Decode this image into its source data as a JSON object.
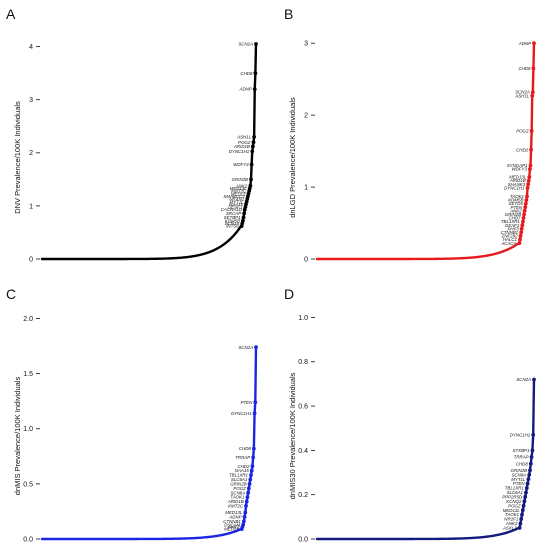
{
  "figure": {
    "panels": [
      "A",
      "B",
      "C",
      "D"
    ]
  },
  "chart_data": [
    {
      "panel": "A",
      "type": "scatter",
      "title": "",
      "xlabel": "",
      "ylabel": "DNV Prevalence/100K Individuals",
      "ylim": [
        0,
        4.2
      ],
      "yticks": [
        0,
        1,
        2,
        3,
        4
      ],
      "color": "#000000",
      "n_genes": 19000,
      "grid": false,
      "labeled_genes": [
        {
          "gene": "SCN2A",
          "value": 4.05
        },
        {
          "gene": "CHD8",
          "value": 3.5
        },
        {
          "gene": "ADNP",
          "value": 3.2
        },
        {
          "gene": "ASH1L",
          "value": 2.3
        },
        {
          "gene": "POGZ",
          "value": 2.2
        },
        {
          "gene": "ARID1B",
          "value": 2.12
        },
        {
          "gene": "DYNC1H1",
          "value": 2.03
        },
        {
          "gene": "WDFY3",
          "value": 1.78
        },
        {
          "gene": "GRIN2B",
          "value": 1.5
        },
        {
          "gene": "ANK2",
          "value": 1.38
        },
        {
          "gene": "MED13L",
          "value": 1.33
        },
        {
          "gene": "KMT2C",
          "value": 1.28
        },
        {
          "gene": "MED13",
          "value": 1.23
        },
        {
          "gene": "SMARCC2",
          "value": 1.18
        },
        {
          "gene": "NRXN1",
          "value": 1.13
        },
        {
          "gene": "MYT1L",
          "value": 1.08
        },
        {
          "gene": "NAA15",
          "value": 1.03
        },
        {
          "gene": "DEAF1",
          "value": 0.98
        },
        {
          "gene": "CACNA1D",
          "value": 0.93
        },
        {
          "gene": "SRCAP",
          "value": 0.86
        },
        {
          "gene": "SETBP1",
          "value": 0.78
        },
        {
          "gene": "KDM5B",
          "value": 0.72
        },
        {
          "gene": "SCN1A",
          "value": 0.67
        },
        {
          "gene": "INTS6",
          "value": 0.62
        }
      ]
    },
    {
      "panel": "B",
      "type": "scatter",
      "title": "",
      "xlabel": "",
      "ylabel": "dnLGD Prevalence/100K Individuals",
      "ylim": [
        0,
        3.1
      ],
      "yticks": [
        0,
        1,
        2,
        3
      ],
      "color": "#e8191b",
      "n_genes": 19000,
      "grid": false,
      "labeled_genes": [
        {
          "gene": "ADNP",
          "value": 3.0
        },
        {
          "gene": "CHD8",
          "value": 2.65
        },
        {
          "gene": "SCN2A",
          "value": 2.32
        },
        {
          "gene": "ASH1L",
          "value": 2.27
        },
        {
          "gene": "POGZ",
          "value": 1.78
        },
        {
          "gene": "CHD2",
          "value": 1.52
        },
        {
          "gene": "SYNGAP1",
          "value": 1.3
        },
        {
          "gene": "WDFY3",
          "value": 1.25
        },
        {
          "gene": "MED13L",
          "value": 1.14
        },
        {
          "gene": "ARID1B",
          "value": 1.09
        },
        {
          "gene": "SHANK3",
          "value": 1.04
        },
        {
          "gene": "DYNC1H1",
          "value": 0.99
        },
        {
          "gene": "TAOK1",
          "value": 0.87
        },
        {
          "gene": "KDM5B",
          "value": 0.82
        },
        {
          "gene": "SETD5",
          "value": 0.77
        },
        {
          "gene": "PTEN",
          "value": 0.72
        },
        {
          "gene": "ANK2",
          "value": 0.67
        },
        {
          "gene": "GRIN2B",
          "value": 0.62
        },
        {
          "gene": "CHD7",
          "value": 0.57
        },
        {
          "gene": "TBL1XR1",
          "value": 0.52
        },
        {
          "gene": "DEAF1",
          "value": 0.47
        },
        {
          "gene": "PHF3",
          "value": 0.42
        },
        {
          "gene": "CTNNB1",
          "value": 0.37
        },
        {
          "gene": "ZNF292",
          "value": 0.32
        },
        {
          "gene": "HALC1",
          "value": 0.27
        },
        {
          "gene": "ACACA",
          "value": 0.22
        }
      ]
    },
    {
      "panel": "C",
      "type": "scatter",
      "title": "",
      "xlabel": "",
      "ylabel": "dnMIS Prevalence/100K Individuals",
      "ylim": [
        0,
        2.05
      ],
      "yticks": [
        0.0,
        0.5,
        1.0,
        1.5,
        2.0
      ],
      "color": "#1c24e6",
      "n_genes": 19000,
      "grid": false,
      "labeled_genes": [
        {
          "gene": "SCN2A",
          "value": 1.74
        },
        {
          "gene": "PTEN",
          "value": 1.24
        },
        {
          "gene": "DYNC1H1",
          "value": 1.14
        },
        {
          "gene": "CHD8",
          "value": 0.82
        },
        {
          "gene": "TRRAP",
          "value": 0.74
        },
        {
          "gene": "CHD2",
          "value": 0.66
        },
        {
          "gene": "NAA15",
          "value": 0.62
        },
        {
          "gene": "TBL1XR1",
          "value": 0.58
        },
        {
          "gene": "SLC6A1",
          "value": 0.54
        },
        {
          "gene": "GRIN2B",
          "value": 0.5
        },
        {
          "gene": "POGZ",
          "value": 0.46
        },
        {
          "gene": "SCN8A",
          "value": 0.42
        },
        {
          "gene": "TAOK1",
          "value": 0.38
        },
        {
          "gene": "ARID1B",
          "value": 0.34
        },
        {
          "gene": "KMT2C",
          "value": 0.3
        },
        {
          "gene": "MED13L",
          "value": 0.24
        },
        {
          "gene": "ADNP",
          "value": 0.2
        },
        {
          "gene": "CTNNB1",
          "value": 0.16
        },
        {
          "gene": "DSCAM",
          "value": 0.13
        },
        {
          "gene": "ANK2",
          "value": 0.11
        },
        {
          "gene": "MED13",
          "value": 0.09
        }
      ]
    },
    {
      "panel": "D",
      "type": "scatter",
      "title": "",
      "xlabel": "",
      "ylabel": "dnMIS30 Prevalence/100K Individuals",
      "ylim": [
        0,
        1.02
      ],
      "yticks": [
        0.0,
        0.2,
        0.4,
        0.6,
        0.8,
        1.0
      ],
      "color": "#141a80",
      "n_genes": 19000,
      "grid": false,
      "labeled_genes": [
        {
          "gene": "SCN2A",
          "value": 0.72
        },
        {
          "gene": "DYNC1H1",
          "value": 0.47
        },
        {
          "gene": "STXBP1",
          "value": 0.4
        },
        {
          "gene": "TRRAP",
          "value": 0.37
        },
        {
          "gene": "CHD8",
          "value": 0.34
        },
        {
          "gene": "GRIN2B",
          "value": 0.31
        },
        {
          "gene": "SCN8A",
          "value": 0.29
        },
        {
          "gene": "MYT1L",
          "value": 0.27
        },
        {
          "gene": "PTEN",
          "value": 0.25
        },
        {
          "gene": "TBL1XR1",
          "value": 0.23
        },
        {
          "gene": "SLC6A1",
          "value": 0.21
        },
        {
          "gene": "PPP2R5D",
          "value": 0.19
        },
        {
          "gene": "KCNQ2",
          "value": 0.17
        },
        {
          "gene": "POGZ",
          "value": 0.15
        },
        {
          "gene": "MED13L",
          "value": 0.13
        },
        {
          "gene": "TAOK1",
          "value": 0.11
        },
        {
          "gene": "NR2F1",
          "value": 0.09
        },
        {
          "gene": "ANK2",
          "value": 0.07
        },
        {
          "gene": "ASXL3",
          "value": 0.05
        }
      ]
    }
  ]
}
